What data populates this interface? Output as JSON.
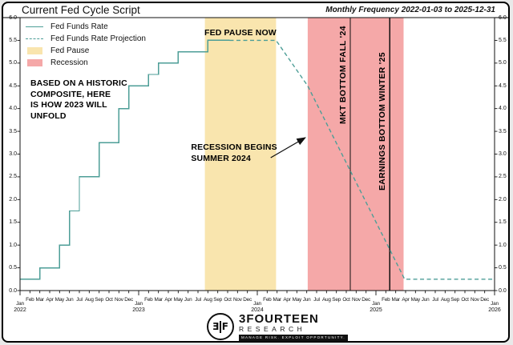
{
  "window": {
    "title": "Current Fed Cycle Script",
    "subtitle": "Monthly Frequency 2022-01-03 to 2025-12-31"
  },
  "colors": {
    "line": "#4d9e97",
    "fed_pause": "#f9e5ae",
    "recession": "#f5a8a8",
    "ink": "#111111"
  },
  "legend": {
    "items": [
      {
        "label": "Fed Funds Rate",
        "swatch": "solid-line"
      },
      {
        "label": "Fed Funds Rate Projection",
        "swatch": "dashed-line"
      },
      {
        "label": "Fed Pause",
        "swatch": "fed-pause-patch"
      },
      {
        "label": "Recession",
        "swatch": "recession-patch"
      }
    ]
  },
  "footer": {
    "brand": "3FOURTEEN",
    "brand_sub": "RESEARCH",
    "tagline": "MANAGE RISK. EXPLOIT OPPORTUNITY.",
    "logo_left": "Ǝ",
    "logo_right": "F"
  },
  "chart_data": {
    "type": "line",
    "title": "Current Fed Cycle Script",
    "subtitle": "Monthly Frequency 2022-01-03 to 2025-12-31",
    "x_axis": {
      "unit": "months since 2022-01",
      "start_label": "Jan 2022",
      "end_label": "Jan 2026",
      "years": [
        "2022",
        "2023",
        "2024",
        "2025",
        "2026"
      ],
      "month_labels": [
        "Jan",
        "Feb",
        "Mar",
        "Apr",
        "May",
        "Jun",
        "Jul",
        "Aug",
        "Sep",
        "Oct",
        "Nov",
        "Dec"
      ]
    },
    "ylim": [
      0.0,
      6.0
    ],
    "y_ticks": [
      0.0,
      0.5,
      1.0,
      1.5,
      2.0,
      2.5,
      3.0,
      3.5,
      4.0,
      4.5,
      5.0,
      5.5,
      6.0
    ],
    "grid": false,
    "legend_position": "upper-left",
    "series": [
      {
        "name": "Fed Funds Rate",
        "style": "solid-step",
        "points": [
          [
            0,
            0.25
          ],
          [
            2,
            0.5
          ],
          [
            4,
            1.0
          ],
          [
            5,
            1.75
          ],
          [
            6,
            2.5
          ],
          [
            8,
            3.25
          ],
          [
            10,
            4.0
          ],
          [
            11,
            4.5
          ],
          [
            13,
            4.75
          ],
          [
            14,
            5.0
          ],
          [
            16,
            5.25
          ],
          [
            19,
            5.5
          ],
          [
            21.2,
            5.5
          ]
        ]
      },
      {
        "name": "Fed Funds Rate Projection",
        "style": "dashed",
        "points": [
          [
            21.2,
            5.5
          ],
          [
            25.9,
            5.5
          ],
          [
            29.1,
            4.5
          ],
          [
            38.9,
            0.25
          ],
          [
            48,
            0.25
          ]
        ]
      }
    ],
    "bands": [
      {
        "label": "Fed Pause",
        "x0": 18.7,
        "x1": 25.9,
        "color_key": "fed_pause"
      },
      {
        "label": "Recession",
        "x0": 29.1,
        "x1": 38.8,
        "color_key": "recession"
      }
    ],
    "event_lines": [
      {
        "label": "MKT BOTTOM FALL '24",
        "x": 33.4,
        "label_bottom_value": 3.66
      },
      {
        "label": "EARNINGS BOTTOM WINTER '25",
        "x": 37.4,
        "label_bottom_value": 2.2
      }
    ],
    "annotations": [
      {
        "id": "fed-pause-now",
        "text": "FED PAUSE NOW",
        "x": 18.65,
        "y": 5.78
      },
      {
        "id": "historic-composite",
        "text": "BASED ON A HISTORIC\nCOMPOSITE, HERE\nIS HOW 2023 WILL\nUNFOLD",
        "x": 1.05,
        "y": 4.67
      },
      {
        "id": "recession-begins",
        "text": "RECESSION BEGINS\nSUMMER 2024",
        "x": 17.3,
        "y": 3.26,
        "arrow": {
          "from": [
            25.35,
            2.92
          ],
          "to": [
            28.85,
            3.36
          ]
        }
      }
    ]
  }
}
